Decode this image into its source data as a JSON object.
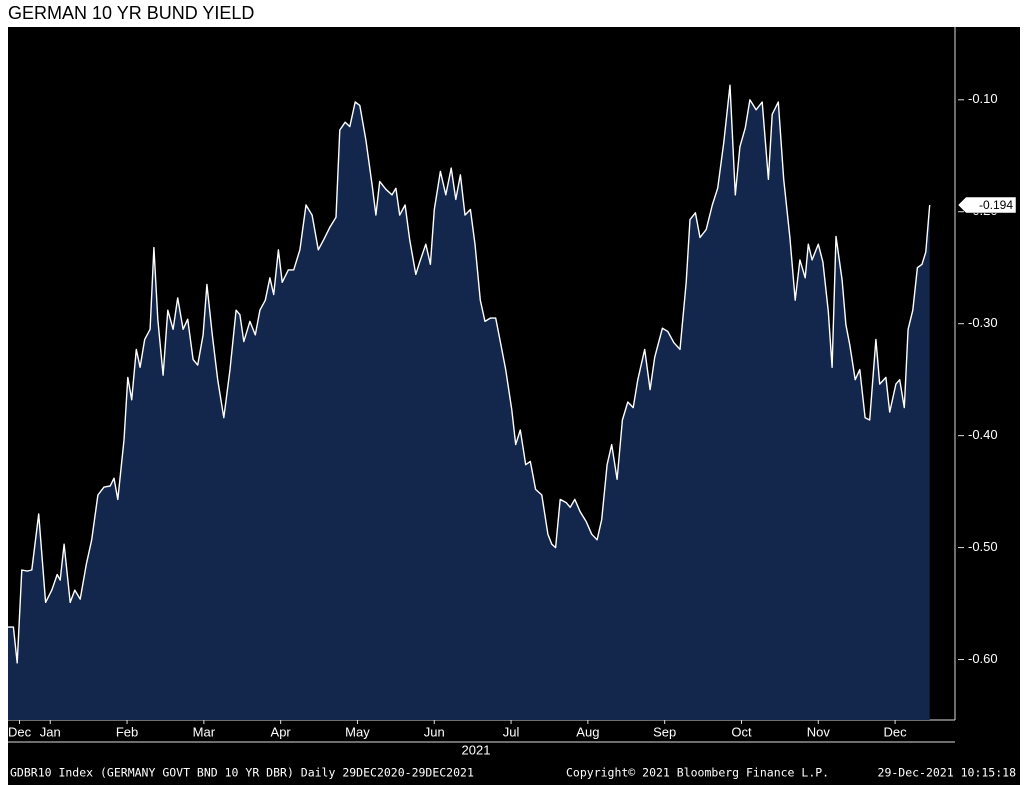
{
  "chart_data": {
    "type": "area",
    "title": "GERMAN 10 YR BUND YIELD",
    "x_group_label": "2021",
    "footer": [
      "GDBR10 Index (GERMANY GOVT BND 10 YR DBR)  Daily 29DEC2020-29DEC2021",
      "Copyright© 2021 Bloomberg Finance L.P.",
      "29-Dec-2021 10:15:18"
    ],
    "color": "#13264b",
    "line_color": "#ffffff",
    "xlim": [
      -0.05,
      12.28
    ],
    "xticks": [
      {
        "value": 0.1,
        "label": "Dec"
      },
      {
        "value": 0.5,
        "label": "Jan"
      },
      {
        "value": 1.5,
        "label": "Feb"
      },
      {
        "value": 2.5,
        "label": "Mar"
      },
      {
        "value": 3.5,
        "label": "Apr"
      },
      {
        "value": 4.5,
        "label": "May"
      },
      {
        "value": 5.5,
        "label": "Jun"
      },
      {
        "value": 6.5,
        "label": "Jul"
      },
      {
        "value": 7.5,
        "label": "Aug"
      },
      {
        "value": 8.5,
        "label": "Sep"
      },
      {
        "value": 9.5,
        "label": "Oct"
      },
      {
        "value": 10.5,
        "label": "Nov"
      },
      {
        "value": 11.5,
        "label": "Dec"
      }
    ],
    "ylim": [
      -0.654,
      -0.035
    ],
    "yticks": [
      {
        "value": -0.6,
        "label": "-0.60"
      },
      {
        "value": -0.5,
        "label": "-0.50"
      },
      {
        "value": -0.4,
        "label": "-0.40"
      },
      {
        "value": -0.3,
        "label": "-0.30"
      },
      {
        "value": -0.2,
        "label": "-0.20"
      },
      {
        "value": -0.1,
        "label": "-0.10"
      }
    ],
    "x": [
      -0.05,
      0.02,
      0.07,
      0.13,
      0.2,
      0.26,
      0.35,
      0.44,
      0.52,
      0.59,
      0.63,
      0.68,
      0.76,
      0.82,
      0.89,
      0.97,
      1.04,
      1.12,
      1.2,
      1.28,
      1.33,
      1.38,
      1.46,
      1.51,
      1.56,
      1.62,
      1.67,
      1.73,
      1.8,
      1.85,
      1.9,
      1.97,
      2.03,
      2.1,
      2.16,
      2.23,
      2.29,
      2.36,
      2.42,
      2.49,
      2.54,
      2.61,
      2.68,
      2.76,
      2.84,
      2.92,
      2.97,
      3.02,
      3.1,
      3.17,
      3.23,
      3.3,
      3.36,
      3.41,
      3.47,
      3.52,
      3.6,
      3.67,
      3.75,
      3.83,
      3.91,
      3.99,
      4.06,
      4.14,
      4.22,
      4.27,
      4.34,
      4.4,
      4.47,
      4.53,
      4.61,
      4.69,
      4.74,
      4.79,
      4.87,
      4.95,
      5.0,
      5.05,
      5.12,
      5.18,
      5.26,
      5.31,
      5.39,
      5.45,
      5.5,
      5.58,
      5.65,
      5.72,
      5.78,
      5.84,
      5.9,
      5.97,
      6.03,
      6.1,
      6.16,
      6.23,
      6.3,
      6.36,
      6.43,
      6.51,
      6.56,
      6.62,
      6.69,
      6.75,
      6.82,
      6.9,
      6.98,
      7.03,
      7.08,
      7.14,
      7.22,
      7.27,
      7.33,
      7.4,
      7.48,
      7.55,
      7.62,
      7.68,
      7.75,
      7.81,
      7.88,
      7.95,
      8.02,
      8.09,
      8.15,
      8.24,
      8.31,
      8.37,
      8.47,
      8.54,
      8.62,
      8.7,
      8.78,
      8.83,
      8.9,
      8.96,
      9.04,
      9.12,
      9.19,
      9.27,
      9.35,
      9.42,
      9.48,
      9.55,
      9.61,
      9.69,
      9.77,
      9.85,
      9.9,
      9.98,
      10.05,
      10.13,
      10.2,
      10.26,
      10.33,
      10.37,
      10.42,
      10.5,
      10.56,
      10.63,
      10.68,
      10.73,
      10.81,
      10.86,
      10.91,
      10.98,
      11.04,
      11.11,
      11.17,
      11.25,
      11.3,
      11.38,
      11.43,
      11.51,
      11.56,
      11.62,
      11.67,
      11.73,
      11.79,
      11.85,
      11.9,
      11.95
    ],
    "values": [
      -0.571,
      -0.571,
      -0.603,
      -0.52,
      -0.521,
      -0.52,
      -0.47,
      -0.549,
      -0.538,
      -0.524,
      -0.529,
      -0.497,
      -0.549,
      -0.538,
      -0.546,
      -0.515,
      -0.493,
      -0.453,
      -0.446,
      -0.445,
      -0.438,
      -0.457,
      -0.404,
      -0.348,
      -0.368,
      -0.323,
      -0.339,
      -0.314,
      -0.305,
      -0.232,
      -0.296,
      -0.346,
      -0.288,
      -0.305,
      -0.277,
      -0.305,
      -0.296,
      -0.332,
      -0.337,
      -0.31,
      -0.265,
      -0.31,
      -0.35,
      -0.384,
      -0.341,
      -0.288,
      -0.292,
      -0.316,
      -0.298,
      -0.31,
      -0.288,
      -0.279,
      -0.259,
      -0.274,
      -0.234,
      -0.263,
      -0.252,
      -0.252,
      -0.234,
      -0.194,
      -0.203,
      -0.234,
      -0.225,
      -0.214,
      -0.205,
      -0.127,
      -0.12,
      -0.124,
      -0.102,
      -0.105,
      -0.136,
      -0.176,
      -0.203,
      -0.173,
      -0.18,
      -0.185,
      -0.179,
      -0.203,
      -0.194,
      -0.225,
      -0.256,
      -0.245,
      -0.229,
      -0.247,
      -0.198,
      -0.164,
      -0.185,
      -0.161,
      -0.189,
      -0.167,
      -0.203,
      -0.198,
      -0.229,
      -0.279,
      -0.298,
      -0.295,
      -0.295,
      -0.316,
      -0.341,
      -0.377,
      -0.408,
      -0.395,
      -0.426,
      -0.423,
      -0.448,
      -0.453,
      -0.488,
      -0.497,
      -0.5,
      -0.457,
      -0.46,
      -0.464,
      -0.457,
      -0.468,
      -0.477,
      -0.488,
      -0.493,
      -0.475,
      -0.426,
      -0.408,
      -0.439,
      -0.386,
      -0.37,
      -0.375,
      -0.35,
      -0.323,
      -0.359,
      -0.33,
      -0.304,
      -0.307,
      -0.317,
      -0.323,
      -0.263,
      -0.207,
      -0.201,
      -0.223,
      -0.216,
      -0.194,
      -0.179,
      -0.138,
      -0.087,
      -0.185,
      -0.142,
      -0.125,
      -0.1,
      -0.109,
      -0.102,
      -0.171,
      -0.113,
      -0.102,
      -0.171,
      -0.223,
      -0.279,
      -0.243,
      -0.259,
      -0.229,
      -0.243,
      -0.229,
      -0.245,
      -0.289,
      -0.339,
      -0.222,
      -0.261,
      -0.301,
      -0.319,
      -0.35,
      -0.341,
      -0.384,
      -0.386,
      -0.314,
      -0.354,
      -0.348,
      -0.379,
      -0.354,
      -0.35,
      -0.375,
      -0.305,
      -0.288,
      -0.25,
      -0.247,
      -0.236,
      -0.194
    ]
  }
}
